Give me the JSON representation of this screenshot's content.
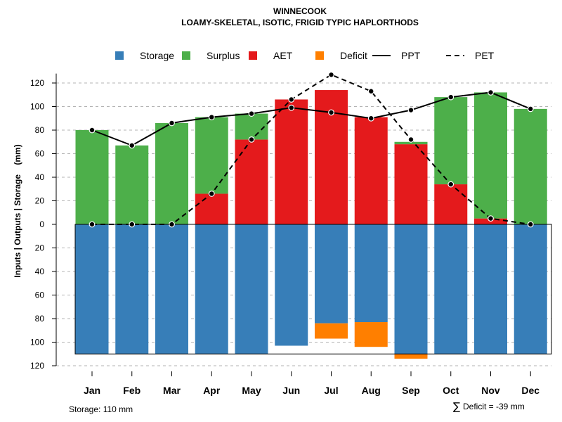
{
  "chart_data": {
    "type": "bar",
    "title": "WINNECOOK",
    "subtitle": "LOAMY-SKELETAL, ISOTIC, FRIGID TYPIC HAPLORTHODS",
    "ylabel": "Inputs | Outputs | Storage    (mm)",
    "ylim": [
      -120,
      130
    ],
    "y_ticks": [
      120,
      100,
      80,
      60,
      40,
      20,
      0,
      20,
      40,
      60,
      80,
      100,
      120
    ],
    "grid": "horizontal dashed",
    "categories": [
      "Jan",
      "Feb",
      "Mar",
      "Apr",
      "May",
      "Jun",
      "Jul",
      "Aug",
      "Sep",
      "Oct",
      "Nov",
      "Dec"
    ],
    "legend": {
      "placement": "top",
      "items": [
        {
          "label": "Storage",
          "type": "square",
          "color": "#377EB8"
        },
        {
          "label": "Surplus",
          "type": "square",
          "color": "#4DAF4A"
        },
        {
          "label": "AET",
          "type": "square",
          "color": "#E41A1C"
        },
        {
          "label": "Deficit",
          "type": "square",
          "color": "#FF7F00"
        },
        {
          "label": "PPT",
          "type": "solid-line",
          "color": "#000000"
        },
        {
          "label": "PET",
          "type": "dashed-line",
          "color": "#000000"
        }
      ]
    },
    "series": [
      {
        "name": "Storage",
        "color": "#377EB8",
        "values": [
          110,
          110,
          110,
          110,
          110,
          103,
          84,
          83,
          110,
          110,
          110,
          110
        ]
      },
      {
        "name": "Surplus",
        "color": "#4DAF4A",
        "values": [
          80,
          67,
          86,
          65,
          22,
          0,
          0,
          0,
          2,
          74,
          107,
          98
        ]
      },
      {
        "name": "AET",
        "color": "#E41A1C",
        "values": [
          0,
          0,
          0,
          26,
          72,
          106,
          114,
          91,
          68,
          34,
          5,
          0
        ]
      },
      {
        "name": "Deficit",
        "color": "#FF7F00",
        "values": [
          0,
          0,
          0,
          0,
          0,
          0,
          13,
          21,
          4,
          0,
          0,
          0
        ]
      },
      {
        "name": "PPT",
        "color": "#000000",
        "values": [
          80,
          67,
          86,
          91,
          94,
          99,
          95,
          90,
          97,
          108,
          112,
          98
        ]
      },
      {
        "name": "PET",
        "color": "#000000",
        "values": [
          0,
          0,
          0,
          26,
          72,
          106,
          127,
          113,
          72,
          34,
          5,
          0
        ]
      }
    ],
    "storage_capacity": 110,
    "footer_left": "Storage: 110 mm",
    "footer_right_symbol": "∑",
    "footer_right": "Deficit = -39 mm"
  }
}
